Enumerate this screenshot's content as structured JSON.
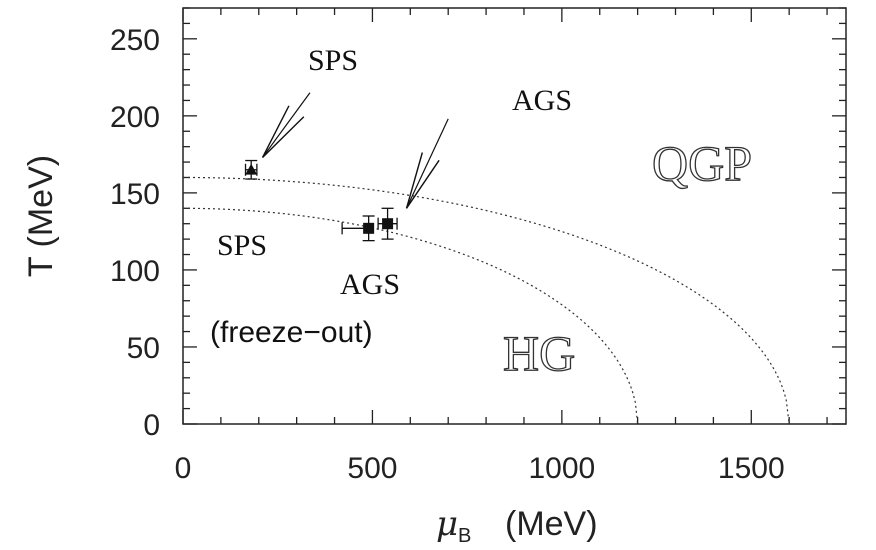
{
  "chart_data": {
    "type": "scatter",
    "xlabel_symbol": "μ",
    "xlabel_sub": "B",
    "xlabel_unit": "(MeV)",
    "ylabel": "T (MeV)",
    "xlim": [
      0,
      1750
    ],
    "ylim": [
      0,
      270
    ],
    "x_ticks": [
      0,
      500,
      1000,
      1500
    ],
    "x_tick_labels": [
      "0",
      "500",
      "1000",
      "1500"
    ],
    "y_ticks": [
      0,
      50,
      100,
      150,
      200,
      250
    ],
    "y_tick_labels": [
      "0",
      "50",
      "100",
      "150",
      "200",
      "250"
    ],
    "grid": false,
    "curves": [
      {
        "T0": 160,
        "mu_max": 1600,
        "style": "dotted"
      },
      {
        "T0": 140,
        "mu_max": 1200,
        "style": "dotted"
      }
    ],
    "points": [
      {
        "x": 180,
        "y": 165,
        "marker": "triangle",
        "xerr": [
          15,
          15
        ],
        "yerr": [
          6,
          6
        ]
      },
      {
        "x": 490,
        "y": 127,
        "marker": "square",
        "xerr": [
          70,
          0
        ],
        "yerr": [
          8,
          8
        ]
      },
      {
        "x": 540,
        "y": 130,
        "marker": "square",
        "xerr": [
          25,
          25
        ],
        "yerr": [
          10,
          10
        ]
      }
    ],
    "annotations": {
      "sps_top": "SPS",
      "ags_top": "AGS",
      "qgp": "QGP",
      "sps_left": "SPS",
      "ags_bottom": "AGS",
      "freeze_out": "(freeze−out)",
      "hg": "HG"
    },
    "arrows": [
      {
        "from": [
          335,
          215
        ],
        "to": [
          210,
          173
        ]
      },
      {
        "from": [
          700,
          198
        ],
        "to": [
          590,
          140
        ]
      }
    ]
  }
}
